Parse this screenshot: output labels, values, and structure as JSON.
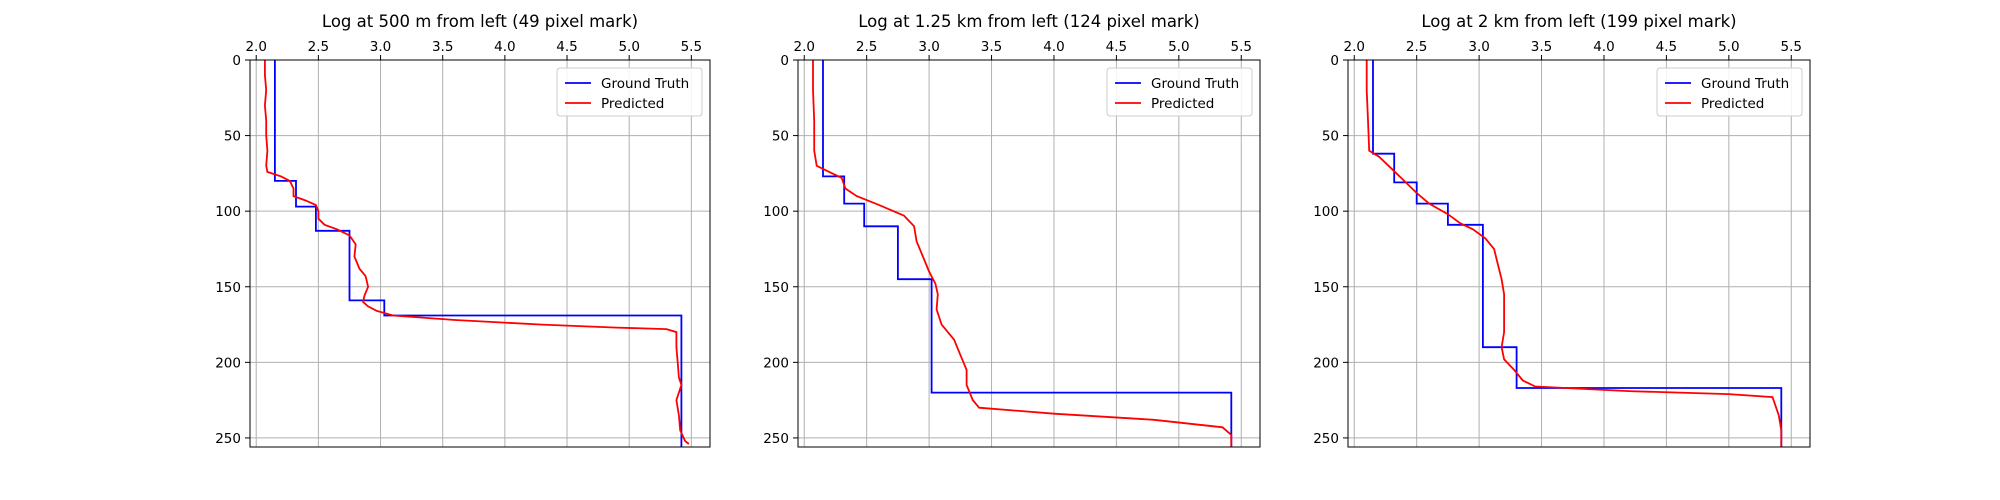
{
  "chart_data": [
    {
      "type": "line",
      "title": "Log at 500 m from left (49 pixel mark)",
      "xlabel": "",
      "ylabel": "",
      "xlim": [
        1.95,
        5.65
      ],
      "ylim": [
        256,
        0
      ],
      "y_inverted": true,
      "x_axis_position": "top",
      "grid": true,
      "legend_position": "top-right",
      "xticks": [
        2.0,
        2.5,
        3.0,
        3.5,
        4.0,
        4.5,
        5.0,
        5.5
      ],
      "xtick_labels": [
        "2.0",
        "2.5",
        "3.0",
        "3.5",
        "4.0",
        "4.5",
        "5.0",
        "5.5"
      ],
      "yticks": [
        0,
        50,
        100,
        150,
        200,
        250
      ],
      "ytick_labels": [
        "0",
        "50",
        "100",
        "150",
        "200",
        "250"
      ],
      "series": [
        {
          "name": "Ground Truth",
          "color": "#0000ff",
          "points": [
            [
              2.15,
              0
            ],
            [
              2.15,
              80
            ],
            [
              2.32,
              80
            ],
            [
              2.32,
              97
            ],
            [
              2.48,
              97
            ],
            [
              2.48,
              113
            ],
            [
              2.75,
              113
            ],
            [
              2.75,
              159
            ],
            [
              3.03,
              159
            ],
            [
              3.03,
              169
            ],
            [
              5.42,
              169
            ],
            [
              5.42,
              256
            ]
          ]
        },
        {
          "name": "Predicted",
          "color": "#ff0000",
          "points": [
            [
              2.07,
              0
            ],
            [
              2.07,
              10
            ],
            [
              2.08,
              20
            ],
            [
              2.07,
              30
            ],
            [
              2.08,
              40
            ],
            [
              2.08,
              50
            ],
            [
              2.09,
              60
            ],
            [
              2.08,
              70
            ],
            [
              2.09,
              74
            ],
            [
              2.2,
              77
            ],
            [
              2.27,
              80
            ],
            [
              2.3,
              85
            ],
            [
              2.3,
              90
            ],
            [
              2.4,
              93
            ],
            [
              2.48,
              96
            ],
            [
              2.5,
              100
            ],
            [
              2.5,
              105
            ],
            [
              2.55,
              109
            ],
            [
              2.65,
              112
            ],
            [
              2.75,
              116
            ],
            [
              2.8,
              122
            ],
            [
              2.79,
              130
            ],
            [
              2.83,
              138
            ],
            [
              2.88,
              143
            ],
            [
              2.9,
              150
            ],
            [
              2.87,
              156
            ],
            [
              2.86,
              160
            ],
            [
              2.9,
              163
            ],
            [
              2.97,
              166
            ],
            [
              3.1,
              169
            ],
            [
              3.6,
              172
            ],
            [
              4.3,
              175
            ],
            [
              4.9,
              177
            ],
            [
              5.3,
              178
            ],
            [
              5.38,
              180
            ],
            [
              5.38,
              190
            ],
            [
              5.39,
              200
            ],
            [
              5.4,
              210
            ],
            [
              5.42,
              215
            ],
            [
              5.38,
              225
            ],
            [
              5.4,
              235
            ],
            [
              5.41,
              245
            ],
            [
              5.45,
              252
            ],
            [
              5.48,
              254
            ]
          ]
        }
      ]
    },
    {
      "type": "line",
      "title": "Log at 1.25 km from left (124 pixel mark)",
      "xlabel": "",
      "ylabel": "",
      "xlim": [
        1.95,
        5.65
      ],
      "ylim": [
        256,
        0
      ],
      "y_inverted": true,
      "x_axis_position": "top",
      "grid": true,
      "legend_position": "top-right",
      "xticks": [
        2.0,
        2.5,
        3.0,
        3.5,
        4.0,
        4.5,
        5.0,
        5.5
      ],
      "xtick_labels": [
        "2.0",
        "2.5",
        "3.0",
        "3.5",
        "4.0",
        "4.5",
        "5.0",
        "5.5"
      ],
      "yticks": [
        0,
        50,
        100,
        150,
        200,
        250
      ],
      "ytick_labels": [
        "0",
        "50",
        "100",
        "150",
        "200",
        "250"
      ],
      "series": [
        {
          "name": "Ground Truth",
          "color": "#0000ff",
          "points": [
            [
              2.15,
              0
            ],
            [
              2.15,
              77
            ],
            [
              2.32,
              77
            ],
            [
              2.32,
              95
            ],
            [
              2.48,
              95
            ],
            [
              2.48,
              110
            ],
            [
              2.75,
              110
            ],
            [
              2.75,
              145
            ],
            [
              3.02,
              145
            ],
            [
              3.02,
              220
            ],
            [
              5.42,
              220
            ],
            [
              5.42,
              256
            ]
          ]
        },
        {
          "name": "Predicted",
          "color": "#ff0000",
          "points": [
            [
              2.07,
              0
            ],
            [
              2.07,
              20
            ],
            [
              2.08,
              40
            ],
            [
              2.08,
              60
            ],
            [
              2.1,
              70
            ],
            [
              2.2,
              74
            ],
            [
              2.3,
              78
            ],
            [
              2.33,
              85
            ],
            [
              2.42,
              90
            ],
            [
              2.6,
              96
            ],
            [
              2.8,
              103
            ],
            [
              2.88,
              110
            ],
            [
              2.9,
              120
            ],
            [
              2.95,
              130
            ],
            [
              3.0,
              140
            ],
            [
              3.05,
              148
            ],
            [
              3.07,
              155
            ],
            [
              3.06,
              165
            ],
            [
              3.1,
              175
            ],
            [
              3.2,
              185
            ],
            [
              3.25,
              195
            ],
            [
              3.3,
              205
            ],
            [
              3.3,
              215
            ],
            [
              3.35,
              225
            ],
            [
              3.4,
              230
            ],
            [
              4.0,
              234
            ],
            [
              4.8,
              238
            ],
            [
              5.35,
              243
            ],
            [
              5.42,
              248
            ],
            [
              5.42,
              256
            ]
          ]
        }
      ]
    },
    {
      "type": "line",
      "title": "Log at 2 km from left (199 pixel mark)",
      "xlabel": "",
      "ylabel": "",
      "xlim": [
        1.95,
        5.65
      ],
      "ylim": [
        256,
        0
      ],
      "y_inverted": true,
      "x_axis_position": "top",
      "grid": true,
      "legend_position": "top-right",
      "xticks": [
        2.0,
        2.5,
        3.0,
        3.5,
        4.0,
        4.5,
        5.0,
        5.5
      ],
      "xtick_labels": [
        "2.0",
        "2.5",
        "3.0",
        "3.5",
        "4.0",
        "4.5",
        "5.0",
        "5.5"
      ],
      "yticks": [
        0,
        50,
        100,
        150,
        200,
        250
      ],
      "ytick_labels": [
        "0",
        "50",
        "100",
        "150",
        "200",
        "250"
      ],
      "series": [
        {
          "name": "Ground Truth",
          "color": "#0000ff",
          "points": [
            [
              2.15,
              0
            ],
            [
              2.15,
              62
            ],
            [
              2.32,
              62
            ],
            [
              2.32,
              81
            ],
            [
              2.5,
              81
            ],
            [
              2.5,
              95
            ],
            [
              2.75,
              95
            ],
            [
              2.75,
              109
            ],
            [
              3.03,
              109
            ],
            [
              3.03,
              190
            ],
            [
              3.3,
              190
            ],
            [
              3.3,
              217
            ],
            [
              5.42,
              217
            ],
            [
              5.42,
              256
            ]
          ]
        },
        {
          "name": "Predicted",
          "color": "#ff0000",
          "points": [
            [
              2.1,
              0
            ],
            [
              2.1,
              20
            ],
            [
              2.11,
              40
            ],
            [
              2.12,
              60
            ],
            [
              2.2,
              64
            ],
            [
              2.3,
              72
            ],
            [
              2.4,
              80
            ],
            [
              2.5,
              88
            ],
            [
              2.6,
              95
            ],
            [
              2.75,
              102
            ],
            [
              2.85,
              108
            ],
            [
              2.95,
              112
            ],
            [
              3.05,
              118
            ],
            [
              3.12,
              125
            ],
            [
              3.15,
              135
            ],
            [
              3.18,
              145
            ],
            [
              3.2,
              155
            ],
            [
              3.2,
              170
            ],
            [
              3.2,
              180
            ],
            [
              3.18,
              190
            ],
            [
              3.2,
              198
            ],
            [
              3.28,
              205
            ],
            [
              3.35,
              212
            ],
            [
              3.45,
              216
            ],
            [
              4.2,
              219
            ],
            [
              5.0,
              221
            ],
            [
              5.35,
              223
            ],
            [
              5.4,
              235
            ],
            [
              5.42,
              245
            ],
            [
              5.42,
              256
            ]
          ]
        }
      ]
    }
  ]
}
